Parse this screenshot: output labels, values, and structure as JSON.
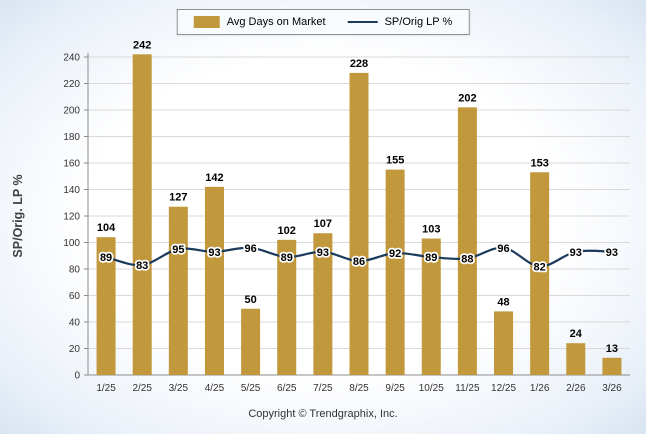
{
  "legend": {
    "bar_label": "Avg Days on Market",
    "line_label": "SP/Orig LP %"
  },
  "footer": {
    "text": "Copyright © Trendgraphix, Inc."
  },
  "chart_data": {
    "type": "bar",
    "categories": [
      "1/25",
      "2/25",
      "3/25",
      "4/25",
      "5/25",
      "6/25",
      "7/25",
      "8/25",
      "9/25",
      "10/25",
      "11/25",
      "12/25",
      "1/26",
      "2/26",
      "3/26"
    ],
    "series": [
      {
        "name": "Avg Days on Market",
        "type": "bar",
        "color": "#C2983C",
        "values": [
          104,
          242,
          127,
          142,
          50,
          102,
          107,
          228,
          155,
          103,
          202,
          48,
          153,
          24,
          13
        ]
      },
      {
        "name": "SP/Orig LP %",
        "type": "line",
        "color": "#1B3A5C",
        "values": [
          89,
          83,
          95,
          93,
          96,
          89,
          93,
          86,
          92,
          89,
          88,
          96,
          82,
          93,
          93
        ]
      }
    ],
    "title": "",
    "xlabel": "",
    "ylabel": "SP/Orig. LP %",
    "ylim": [
      0,
      240
    ],
    "yticks": [
      0,
      20,
      40,
      60,
      80,
      100,
      120,
      140,
      160,
      180,
      200,
      220,
      240
    ],
    "grid": true,
    "legend_position": "top-center"
  }
}
